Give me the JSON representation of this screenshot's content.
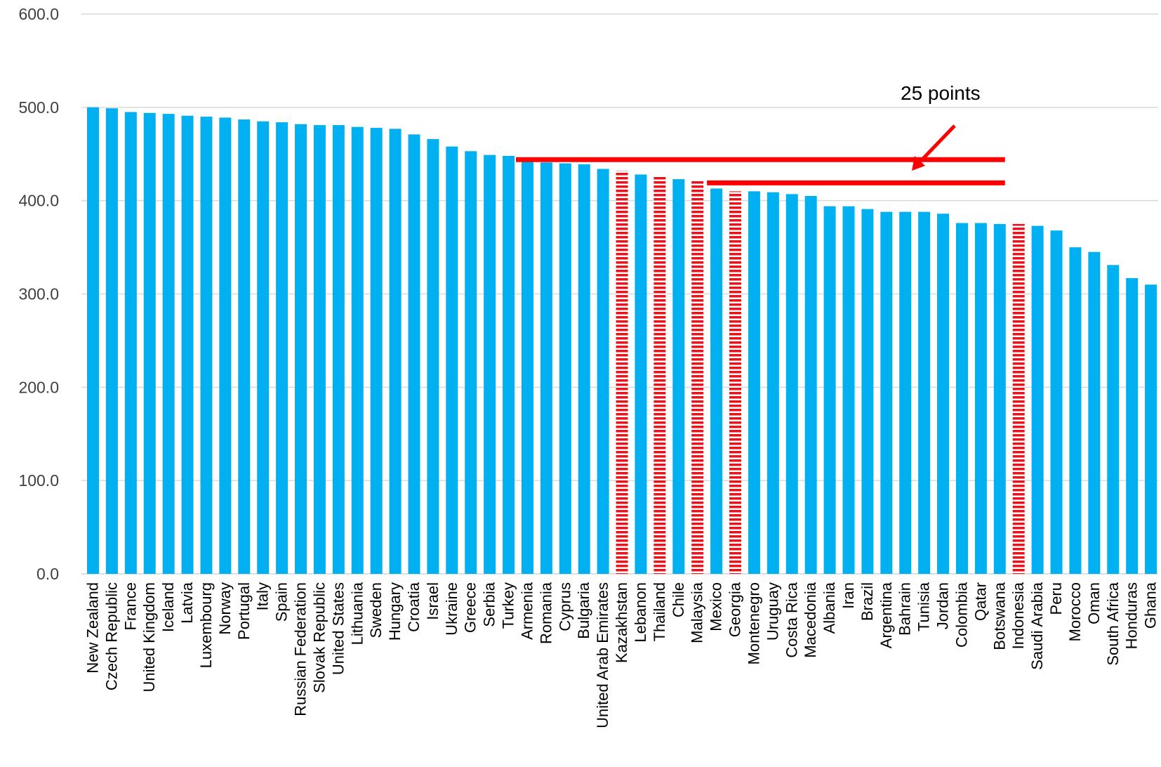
{
  "chart_data": {
    "type": "bar",
    "categories": [
      "New Zealand",
      "Czech Republic",
      "France",
      "United Kingdom",
      "Iceland",
      "Latvia",
      "Luxembourg",
      "Norway",
      "Portugal",
      "Italy",
      "Spain",
      "Russian Federation",
      "Slovak Republic",
      "United States",
      "Lithuania",
      "Sweden",
      "Hungary",
      "Croatia",
      "Israel",
      "Ukraine",
      "Greece",
      "Serbia",
      "Turkey",
      "Armenia",
      "Romania",
      "Cyprus",
      "Bulgaria",
      "United Arab Emirates",
      "Kazakhstan",
      "Lebanon",
      "Thailand",
      "Chile",
      "Malaysia",
      "Mexico",
      "Georgia",
      "Montenegro",
      "Uruguay",
      "Costa Rica",
      "Macedonia",
      "Albania",
      "Iran",
      "Brazil",
      "Argentina",
      "Bahrain",
      "Tunisia",
      "Jordan",
      "Colombia",
      "Qatar",
      "Botswana",
      "Indonesia",
      "Saudi Arabia",
      "Peru",
      "Morocco",
      "Oman",
      "South Africa",
      "Honduras",
      "Ghana"
    ],
    "values": [
      500,
      499,
      495,
      494,
      493,
      491,
      490,
      489,
      487,
      485,
      484,
      482,
      481,
      481,
      479,
      478,
      477,
      471,
      466,
      458,
      453,
      449,
      448,
      442,
      441,
      440,
      439,
      434,
      432,
      428,
      427,
      423,
      421,
      413,
      410,
      410,
      409,
      407,
      405,
      394,
      394,
      391,
      388,
      388,
      388,
      386,
      376,
      376,
      375,
      375,
      373,
      368,
      350,
      345,
      331,
      317,
      310
    ],
    "highlighted": [
      "Kazakhstan",
      "Thailand",
      "Malaysia",
      "Georgia",
      "Indonesia"
    ],
    "ylim": [
      0,
      600
    ],
    "yticks": [
      "0.0",
      "100.0",
      "200.0",
      "300.0",
      "400.0",
      "500.0",
      "600.0"
    ],
    "grid": true,
    "title": "",
    "xlabel": "",
    "ylabel": "",
    "colors": {
      "bar": "#00B0F0",
      "highlight": "#E8141B",
      "line": "#FF0000",
      "grid": "#D9D9D9"
    },
    "annotations": {
      "label": "25 points",
      "upper_line": {
        "from": "Armenia",
        "to": "Botswana",
        "y": 444
      },
      "lower_line": {
        "from": "Mexico",
        "to": "Botswana",
        "y": 419
      }
    }
  }
}
